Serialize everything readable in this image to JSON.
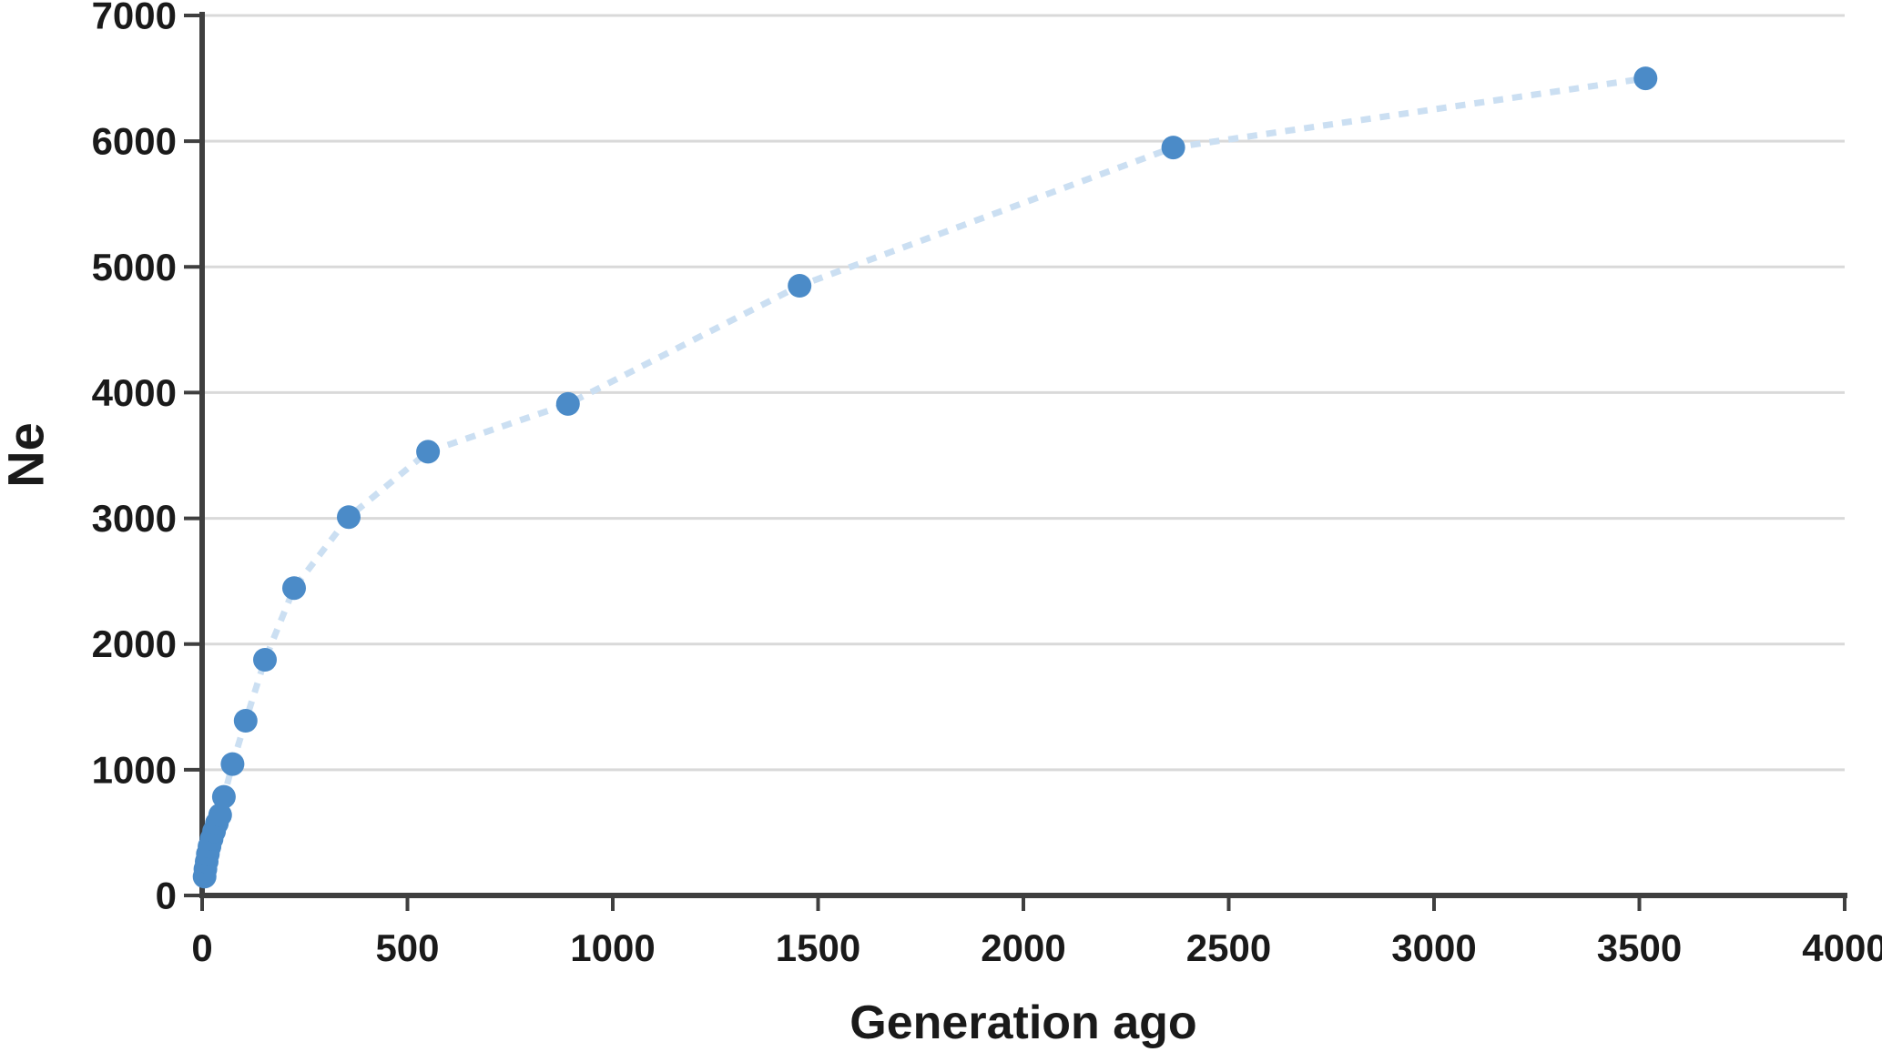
{
  "chart_data": {
    "type": "scatter",
    "title": "",
    "xlabel": "Generation ago",
    "ylabel": "Ne",
    "xlim": [
      0,
      4000
    ],
    "ylim": [
      0,
      7000
    ],
    "x_ticks": [
      0,
      500,
      1000,
      1500,
      2000,
      2500,
      3000,
      3500,
      4000
    ],
    "y_ticks": [
      0,
      1000,
      2000,
      3000,
      4000,
      5000,
      6000,
      7000
    ],
    "grid": "horizontal-only",
    "legend_position": "none",
    "series": [
      {
        "name": "Ne",
        "marker": "circle",
        "line_style": "dashed",
        "points": [
          [
            6,
            150
          ],
          [
            8,
            210
          ],
          [
            11,
            270
          ],
          [
            14,
            330
          ],
          [
            18,
            390
          ],
          [
            23,
            450
          ],
          [
            29,
            510
          ],
          [
            36,
            575
          ],
          [
            44,
            640
          ],
          [
            53,
            785
          ],
          [
            74,
            1045
          ],
          [
            106,
            1390
          ],
          [
            153,
            1875
          ],
          [
            224,
            2445
          ],
          [
            357,
            3010
          ],
          [
            550,
            3530
          ],
          [
            891,
            3910
          ],
          [
            1455,
            4850
          ],
          [
            2365,
            5950
          ],
          [
            3515,
            6500
          ]
        ]
      }
    ]
  },
  "colors": {
    "marker": "#4b8bc8",
    "connector_line": "#cbdff2",
    "gridline": "#d9d9d9",
    "axis": "#3f3f3f",
    "text": "#1a1a1a",
    "background": "#ffffff"
  }
}
